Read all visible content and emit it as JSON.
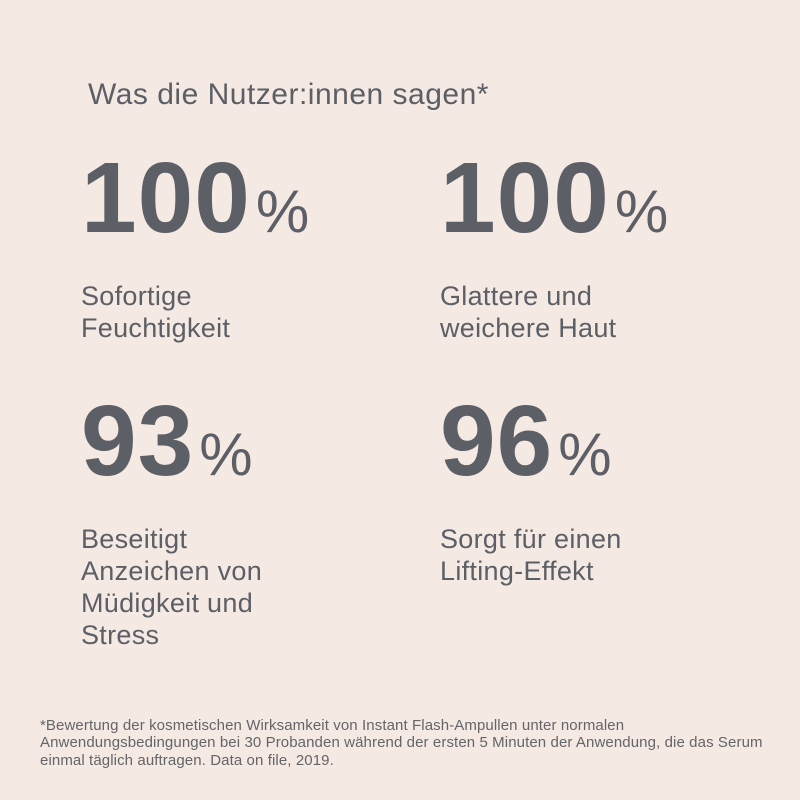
{
  "title": "Was die Nutzer:innen sagen*",
  "stats": [
    {
      "value": "100",
      "unit": "%",
      "label": "Sofortige\nFeuchtigkeit"
    },
    {
      "value": "100",
      "unit": "%",
      "label": "Glattere und\nweichere Haut"
    },
    {
      "value": "93",
      "unit": "%",
      "label": "Beseitigt\nAnzeichen von\nMüdigkeit und\nStress"
    },
    {
      "value": "96",
      "unit": "%",
      "label": "Sorgt für einen\nLifting-Effekt"
    }
  ],
  "footnote": "*Bewertung der kosmetischen Wirksamkeit von Instant Flash-Ampullen unter normalen\nAnwendungsbedingungen bei 30 Probanden während der ersten 5 Minuten der Anwendung, die das Serum\neinmal täglich auftragen. Data on file, 2019.",
  "colors": {
    "background": "#f5e9e3",
    "text": "#5c5f66",
    "footnote_text": "#636569"
  },
  "chart_data": {
    "type": "table",
    "title": "Was die Nutzer:innen sagen*",
    "categories": [
      "Sofortige Feuchtigkeit",
      "Glattere und weichere Haut",
      "Beseitigt Anzeichen von Müdigkeit und Stress",
      "Sorgt für einen Lifting-Effekt"
    ],
    "values": [
      100,
      100,
      93,
      96
    ],
    "unit": "%",
    "legend": false,
    "grid": false,
    "footnote": "*Bewertung der kosmetischen Wirksamkeit von Instant Flash-Ampullen unter normalen Anwendungsbedingungen bei 30 Probanden während der ersten 5 Minuten der Anwendung, die das Serum einmal täglich auftragen. Data on file, 2019."
  }
}
